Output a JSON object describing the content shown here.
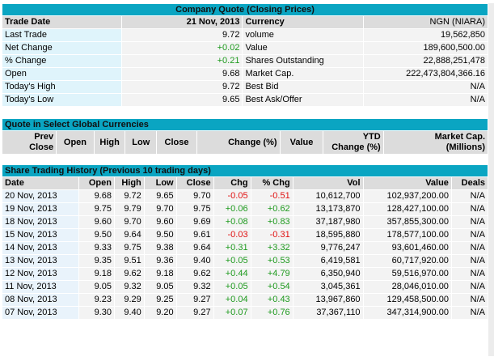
{
  "quote": {
    "title": "Company Quote (Closing Prices)",
    "trade_date_label": "Trade Date",
    "trade_date": "21 Nov, 2013",
    "currency_label": "Currency",
    "currency": "NGN (NIARA)",
    "rows": [
      {
        "left_label": "Last Trade",
        "left_value": "9.72",
        "right_label": "volume",
        "right_value": "19,562,850",
        "left_class": ""
      },
      {
        "left_label": "Net Change",
        "left_value": "+0.02",
        "right_label": "Value",
        "right_value": "189,600,500.00",
        "left_class": "pos"
      },
      {
        "left_label": "% Change",
        "left_value": "+0.21",
        "right_label": "Shares Outstanding",
        "right_value": "22,888,251,478",
        "left_class": "pos"
      },
      {
        "left_label": "Open",
        "left_value": "9.68",
        "right_label": "Market Cap.",
        "right_value": "222,473,804,366.16",
        "left_class": ""
      },
      {
        "left_label": "Today's High",
        "left_value": "9.72",
        "right_label": "Best Bid",
        "right_value": "N/A",
        "left_class": ""
      },
      {
        "left_label": "Today's Low",
        "left_value": "9.65",
        "right_label": "Best Ask/Offer",
        "right_value": "N/A",
        "left_class": ""
      }
    ]
  },
  "global": {
    "title": "Quote in Select Global Currencies",
    "headers": {
      "prev_close_1": "Prev",
      "prev_close_2": "Close",
      "open": "Open",
      "high": "High",
      "low": "Low",
      "close": "Close",
      "change_pct": "Change (%)",
      "value": "Value",
      "ytd_1": "YTD",
      "ytd_2": "Change (%)",
      "mcap_1": "Market Cap.",
      "mcap_2": "(Millions)"
    }
  },
  "history": {
    "title": "Share Trading History (Previous 10 trading days)",
    "headers": {
      "date": "Date",
      "open": "Open",
      "high": "High",
      "low": "Low",
      "close": "Close",
      "chg": "Chg",
      "pct_chg": "% Chg",
      "vol": "Vol",
      "value": "Value",
      "deals": "Deals"
    },
    "rows": [
      {
        "date": "20 Nov, 2013",
        "open": "9.68",
        "high": "9.72",
        "low": "9.65",
        "close": "9.70",
        "chg": "-0.05",
        "pct": "-0.51",
        "vol": "10,612,700",
        "value": "102,937,200.00",
        "deals": "N/A",
        "cls": "neg"
      },
      {
        "date": "19 Nov, 2013",
        "open": "9.75",
        "high": "9.79",
        "low": "9.70",
        "close": "9.75",
        "chg": "+0.06",
        "pct": "+0.62",
        "vol": "13,173,870",
        "value": "128,427,100.00",
        "deals": "N/A",
        "cls": "pos"
      },
      {
        "date": "18 Nov, 2013",
        "open": "9.60",
        "high": "9.70",
        "low": "9.60",
        "close": "9.69",
        "chg": "+0.08",
        "pct": "+0.83",
        "vol": "37,187,980",
        "value": "357,855,300.00",
        "deals": "N/A",
        "cls": "pos"
      },
      {
        "date": "15 Nov, 2013",
        "open": "9.50",
        "high": "9.64",
        "low": "9.50",
        "close": "9.61",
        "chg": "-0.03",
        "pct": "-0.31",
        "vol": "18,595,880",
        "value": "178,577,100.00",
        "deals": "N/A",
        "cls": "neg"
      },
      {
        "date": "14 Nov, 2013",
        "open": "9.33",
        "high": "9.75",
        "low": "9.38",
        "close": "9.64",
        "chg": "+0.31",
        "pct": "+3.32",
        "vol": "9,776,247",
        "value": "93,601,460.00",
        "deals": "N/A",
        "cls": "pos"
      },
      {
        "date": "13 Nov, 2013",
        "open": "9.35",
        "high": "9.51",
        "low": "9.36",
        "close": "9.40",
        "chg": "+0.05",
        "pct": "+0.53",
        "vol": "6,419,581",
        "value": "60,717,920.00",
        "deals": "N/A",
        "cls": "pos"
      },
      {
        "date": "12 Nov, 2013",
        "open": "9.18",
        "high": "9.62",
        "low": "9.18",
        "close": "9.62",
        "chg": "+0.44",
        "pct": "+4.79",
        "vol": "6,350,940",
        "value": "59,516,970.00",
        "deals": "N/A",
        "cls": "pos"
      },
      {
        "date": "11 Nov, 2013",
        "open": "9.05",
        "high": "9.32",
        "low": "9.05",
        "close": "9.32",
        "chg": "+0.05",
        "pct": "+0.54",
        "vol": "3,045,361",
        "value": "28,046,010.00",
        "deals": "N/A",
        "cls": "pos"
      },
      {
        "date": "08 Nov, 2013",
        "open": "9.23",
        "high": "9.29",
        "low": "9.25",
        "close": "9.27",
        "chg": "+0.04",
        "pct": "+0.43",
        "vol": "13,967,860",
        "value": "129,458,500.00",
        "deals": "N/A",
        "cls": "pos"
      },
      {
        "date": "07 Nov, 2013",
        "open": "9.30",
        "high": "9.40",
        "low": "9.20",
        "close": "9.27",
        "chg": "+0.07",
        "pct": "+0.76",
        "vol": "37,367,110",
        "value": "347,314,900.00",
        "deals": "N/A",
        "cls": "pos"
      }
    ]
  }
}
